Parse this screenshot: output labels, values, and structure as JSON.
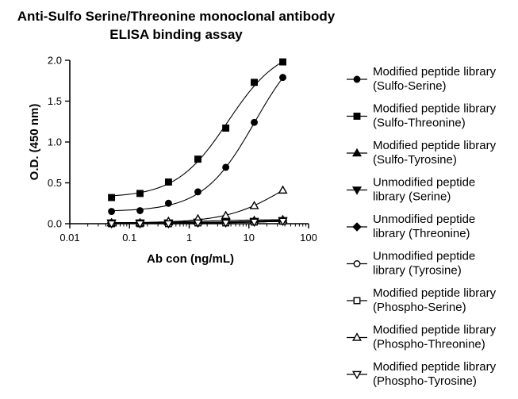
{
  "chart_data": {
    "type": "scatter",
    "title_lines": [
      "Anti-Sulfo Serine/Threonine monoclonal antibody",
      "ELISA binding assay"
    ],
    "xlabel": "Ab con (ng/mL)",
    "ylabel": "O.D. (450 nm)",
    "x_scale": "log",
    "xlim": [
      0.01,
      100
    ],
    "ylim": [
      0,
      2.0
    ],
    "x_ticks": [
      0.01,
      0.1,
      1,
      10,
      100
    ],
    "x_tick_labels": [
      "0.01",
      "0.1",
      "1",
      "10",
      "100"
    ],
    "y_ticks": [
      0,
      0.5,
      1.0,
      1.5,
      2.0
    ],
    "y_tick_labels": [
      "0.0",
      "0.5",
      "1.0",
      "1.5",
      "2.0"
    ],
    "grid": false,
    "legend_position": "right",
    "x": [
      0.05,
      0.15,
      0.45,
      1.4,
      4.1,
      12.3,
      37
    ],
    "series": [
      {
        "name_lines": [
          "Modified peptide library",
          "(Sulfo-Serine)"
        ],
        "marker": "circle-filled",
        "fit": true,
        "values": [
          0.15,
          0.16,
          0.25,
          0.39,
          0.69,
          1.24,
          1.79
        ]
      },
      {
        "name_lines": [
          "Modified peptide library",
          "(Sulfo-Threonine)"
        ],
        "marker": "square-filled",
        "fit": true,
        "values": [
          0.32,
          0.37,
          0.51,
          0.79,
          1.17,
          1.73,
          1.98
        ]
      },
      {
        "name_lines": [
          "Modified peptide library",
          "(Sulfo-Tyrosine)"
        ],
        "marker": "triangle-up-filled",
        "fit": true,
        "values": [
          0.01,
          0.01,
          0.02,
          0.03,
          0.04,
          0.04,
          0.05
        ]
      },
      {
        "name_lines": [
          "Unmodified peptide",
          "library (Serine)"
        ],
        "marker": "triangle-down-filled",
        "fit": true,
        "values": [
          0.01,
          0.01,
          0.01,
          0.02,
          0.02,
          0.03,
          0.04
        ]
      },
      {
        "name_lines": [
          "Unmodified peptide",
          "library (Threonine)"
        ],
        "marker": "diamond-filled",
        "fit": true,
        "values": [
          0.01,
          0.01,
          0.01,
          0.01,
          0.02,
          0.03,
          0.04
        ]
      },
      {
        "name_lines": [
          "Unmodified peptide",
          "library (Tyrosine)"
        ],
        "marker": "circle-open",
        "fit": true,
        "values": [
          0.0,
          0.0,
          0.01,
          0.01,
          0.02,
          0.02,
          0.03
        ]
      },
      {
        "name_lines": [
          "Modified peptide library",
          "(Phospho-Serine)"
        ],
        "marker": "square-open",
        "fit": true,
        "values": [
          0.0,
          0.0,
          0.0,
          0.01,
          0.01,
          0.02,
          0.03
        ]
      },
      {
        "name_lines": [
          "Modified peptide library",
          "(Phospho-Threonine)"
        ],
        "marker": "triangle-up-open",
        "fit": true,
        "values": [
          0.01,
          0.01,
          0.03,
          0.06,
          0.1,
          0.22,
          0.41
        ]
      },
      {
        "name_lines": [
          "Modified peptide library",
          "(Phospho-Tyrosine)"
        ],
        "marker": "triangle-down-open",
        "fit": true,
        "values": [
          0.0,
          0.0,
          0.0,
          0.01,
          0.01,
          0.02,
          0.03
        ]
      }
    ]
  }
}
